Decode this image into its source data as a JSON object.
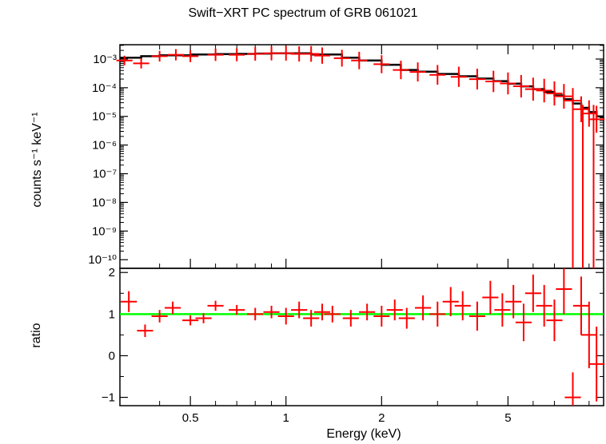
{
  "chart_data": [
    {
      "type": "scatter",
      "panel": "spectrum",
      "title": "Swift−XRT PC spectrum of GRB 061021",
      "ylabel": "counts s⁻¹ keV⁻¹",
      "y_scale": "log",
      "ylim_exponent": [
        -10.3,
        -2.5
      ],
      "y_tick_exponents": [
        -3,
        -4,
        -5,
        -6,
        -7,
        -8,
        -9,
        -10
      ],
      "y_tick_labels": [
        "10⁻³",
        "10⁻⁴",
        "10⁻⁵",
        "10⁻⁶",
        "10⁻⁷",
        "10⁻⁸",
        "10⁻⁹",
        "10⁻¹⁰"
      ],
      "x_scale": "log",
      "xlim": [
        0.3,
        10
      ],
      "series": [
        {
          "color": "#ff0000",
          "style": "crosses with error bars",
          "x": [
            0.31,
            0.35,
            0.4,
            0.45,
            0.5,
            0.6,
            0.7,
            0.8,
            0.9,
            1.0,
            1.1,
            1.2,
            1.3,
            1.5,
            1.7,
            2.0,
            2.3,
            2.6,
            3.0,
            3.5,
            4.0,
            4.5,
            5.0,
            5.5,
            6.0,
            6.5,
            7.0,
            7.5,
            8.0,
            8.5,
            9.0,
            9.5
          ],
          "y_exp": [
            -3.05,
            -3.15,
            -2.9,
            -2.85,
            -2.9,
            -2.85,
            -2.85,
            -2.82,
            -2.8,
            -2.8,
            -2.82,
            -2.82,
            -2.88,
            -2.97,
            -3.05,
            -3.18,
            -3.38,
            -3.45,
            -3.55,
            -3.62,
            -3.7,
            -3.78,
            -3.85,
            -3.95,
            -4.05,
            -4.1,
            -4.2,
            -4.3,
            -4.45,
            -4.75,
            -4.9,
            -5.1
          ]
        },
        {
          "color": "#000000",
          "style": "step model",
          "x": [
            0.3,
            0.35,
            0.4,
            0.5,
            0.6,
            0.7,
            0.8,
            0.9,
            1.0,
            1.2,
            1.5,
            1.7,
            2.0,
            2.3,
            2.6,
            3.0,
            3.5,
            4.0,
            4.5,
            5.0,
            5.5,
            6.0,
            6.5,
            7.0,
            7.5,
            8.0,
            8.5,
            9.0,
            9.5,
            10.0
          ],
          "y_exp": [
            -2.95,
            -2.9,
            -2.87,
            -2.84,
            -2.83,
            -2.82,
            -2.81,
            -2.8,
            -2.8,
            -2.84,
            -2.95,
            -3.05,
            -3.2,
            -3.38,
            -3.44,
            -3.52,
            -3.6,
            -3.68,
            -3.77,
            -3.86,
            -3.95,
            -4.05,
            -4.15,
            -4.27,
            -4.4,
            -4.55,
            -4.7,
            -4.85,
            -5.0,
            -5.2
          ]
        }
      ]
    },
    {
      "type": "scatter",
      "panel": "ratio",
      "ylabel": "ratio",
      "xlabel": "Energy (keV)",
      "x_scale": "log",
      "xlim": [
        0.3,
        10
      ],
      "x_ticks": [
        0.5,
        1,
        2,
        5
      ],
      "x_tick_labels": [
        "0.5",
        "1",
        "2",
        "5"
      ],
      "ylim": [
        -1.2,
        2.1
      ],
      "y_ticks": [
        2,
        1,
        0,
        -1
      ],
      "y_tick_labels": [
        "2",
        "1",
        "0",
        "−1"
      ],
      "reference_line": {
        "y": 1,
        "color": "#00ff00"
      },
      "series": [
        {
          "color": "#ff0000",
          "x": [
            0.32,
            0.36,
            0.4,
            0.44,
            0.5,
            0.55,
            0.6,
            0.7,
            0.8,
            0.9,
            1.0,
            1.1,
            1.2,
            1.3,
            1.4,
            1.6,
            1.8,
            2.0,
            2.2,
            2.4,
            2.7,
            3.0,
            3.3,
            3.6,
            4.0,
            4.4,
            4.8,
            5.2,
            5.6,
            6.0,
            6.5,
            7.0,
            7.5,
            8.0,
            8.5,
            9.0,
            9.5
          ],
          "y": [
            1.3,
            0.6,
            0.95,
            1.15,
            0.85,
            0.9,
            1.2,
            1.1,
            1.0,
            1.05,
            0.95,
            1.1,
            0.9,
            1.05,
            1.0,
            0.9,
            1.05,
            0.95,
            1.1,
            0.9,
            1.15,
            1.0,
            1.3,
            1.2,
            0.95,
            1.4,
            1.1,
            1.3,
            0.8,
            1.5,
            1.2,
            0.85,
            1.6,
            -1.0,
            1.2,
            0.5,
            -0.2
          ],
          "yerr": [
            0.25,
            0.15,
            0.15,
            0.15,
            0.12,
            0.12,
            0.12,
            0.12,
            0.15,
            0.15,
            0.2,
            0.2,
            0.2,
            0.2,
            0.2,
            0.2,
            0.2,
            0.25,
            0.25,
            0.25,
            0.3,
            0.3,
            0.35,
            0.35,
            0.35,
            0.4,
            0.4,
            0.4,
            0.45,
            0.45,
            0.5,
            0.5,
            0.6,
            0.6,
            0.7,
            0.8,
            0.9
          ]
        }
      ]
    }
  ]
}
